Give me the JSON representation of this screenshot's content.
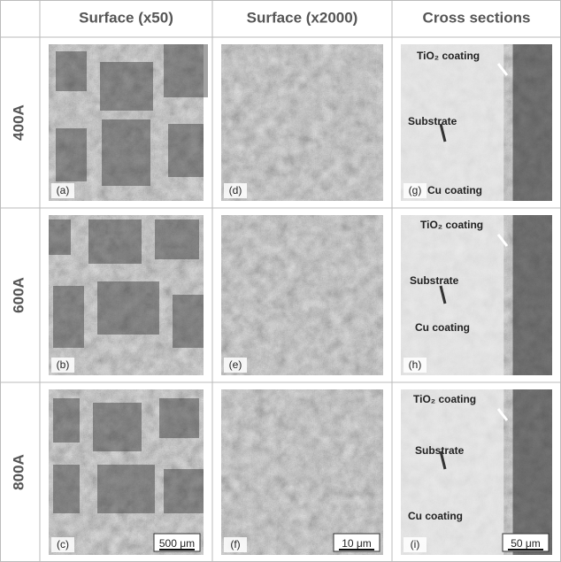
{
  "header": {
    "columns": [
      "Surface (x50)",
      "Surface (x2000)",
      "Cross sections"
    ]
  },
  "rows": [
    {
      "label": "400A",
      "panels": [
        {
          "label": "(a)"
        },
        {
          "label": "(d)"
        },
        {
          "label": "(g)",
          "annotations": [
            "TiO₂ coating",
            "Substrate",
            "Cu coating"
          ]
        }
      ]
    },
    {
      "label": "600A",
      "panels": [
        {
          "label": "(b)"
        },
        {
          "label": "(e)"
        },
        {
          "label": "(h)",
          "annotations": [
            "TiO₂ coating",
            "Substrate",
            "Cu coating"
          ]
        }
      ]
    },
    {
      "label": "800A",
      "panels": [
        {
          "label": "(c)",
          "scale_bar": "500 μm"
        },
        {
          "label": "(f)",
          "scale_bar": "10 μm"
        },
        {
          "label": "(i)",
          "scale_bar": "50 μm",
          "annotations": [
            "TiO₂ coating",
            "Substrate",
            "Cu coating"
          ]
        }
      ]
    }
  ]
}
